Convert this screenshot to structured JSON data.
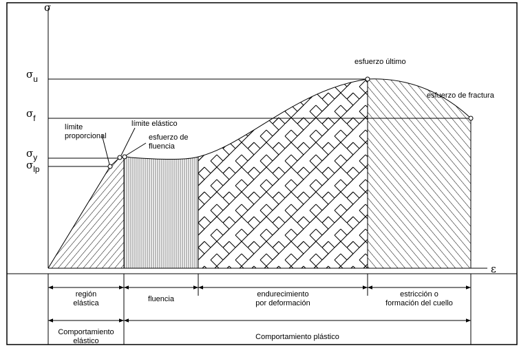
{
  "axes": {
    "y": "σ",
    "x": "ε"
  },
  "levels": [
    {
      "symbol": "σ",
      "subscript": "u"
    },
    {
      "symbol": "σ",
      "subscript": "f"
    },
    {
      "symbol": "σ",
      "subscript": "y"
    },
    {
      "symbol": "σ",
      "subscript": "lp"
    }
  ],
  "annotations": [
    {
      "lines": [
        "esfuerzo último"
      ]
    },
    {
      "lines": [
        "esfuerzo de fractura"
      ]
    },
    {
      "lines": [
        "límite elástico"
      ]
    },
    {
      "lines": [
        "esfuerzo de",
        "fluencia"
      ]
    },
    {
      "lines": [
        "límite",
        "proporcional"
      ]
    }
  ],
  "regions": [
    {
      "lines": [
        "región",
        "elástica"
      ]
    },
    {
      "lines": [
        "fluencia"
      ]
    },
    {
      "lines": [
        "endurecimiento",
        "por deformación"
      ]
    },
    {
      "lines": [
        "estricción o",
        "formación del cuello"
      ]
    }
  ],
  "behaviors": [
    {
      "lines": [
        "Comportamiento",
        "elástico"
      ]
    },
    {
      "lines": [
        "Comportamiento plástico"
      ]
    }
  ]
}
